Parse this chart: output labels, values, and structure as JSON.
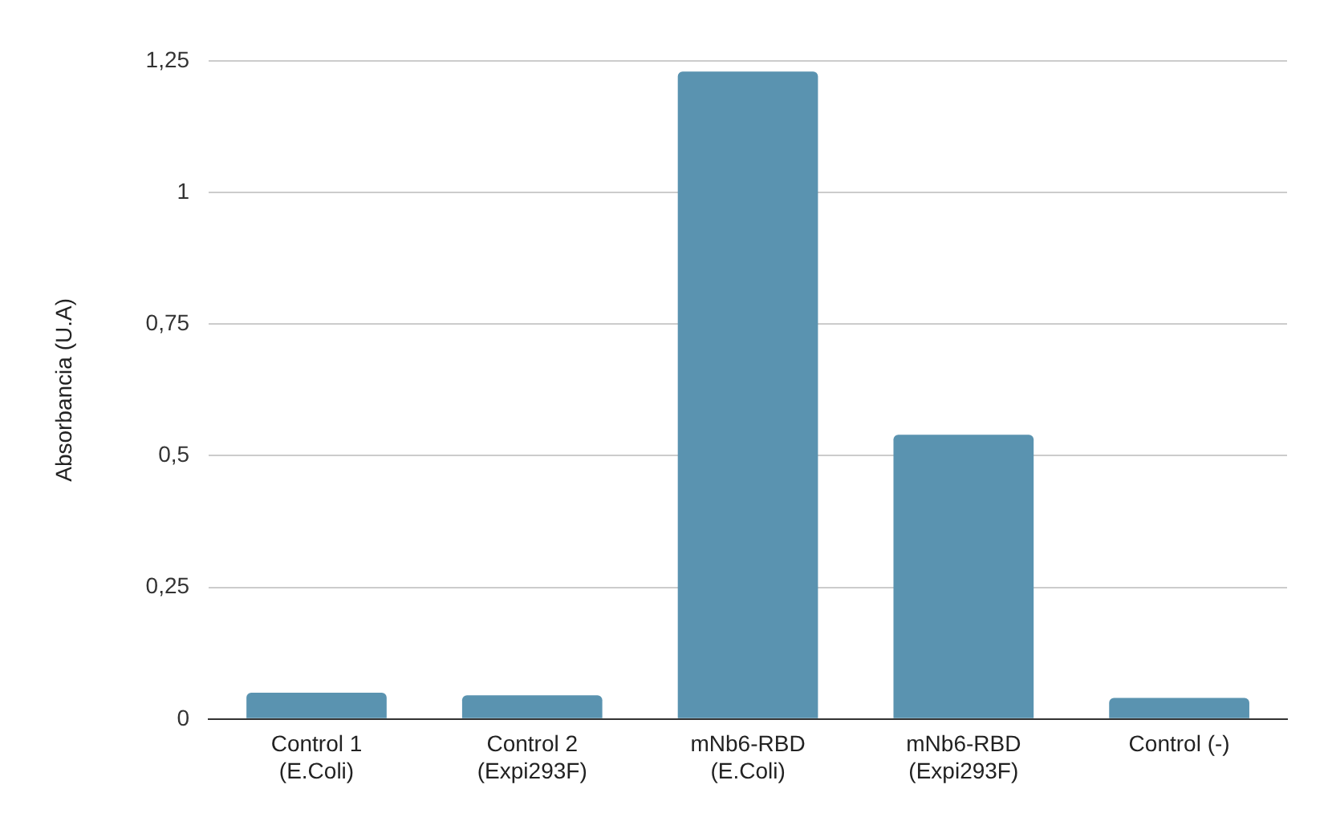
{
  "chart_data": {
    "type": "bar",
    "ylabel": "Absorbancia (U.A)",
    "categories": [
      "Control 1\n(E.Coli)",
      "Control 2\n(Expi293F)",
      "mNb6-RBD\n(E.Coli)",
      "mNb6-RBD\n(Expi293F)",
      "Control (-)"
    ],
    "values": [
      0.05,
      0.045,
      1.23,
      0.54,
      0.04
    ],
    "color": "#5a93b0",
    "ylim": [
      0,
      1.25
    ],
    "yticks": [
      0,
      {
        "value": 0.25,
        "label": "0,25"
      },
      {
        "value": 0.5,
        "label": "0,5"
      },
      {
        "value": 0.75,
        "label": "0,75"
      },
      1,
      {
        "value": 1.25,
        "label": "1,25"
      }
    ],
    "grid": "y",
    "legend": false
  }
}
